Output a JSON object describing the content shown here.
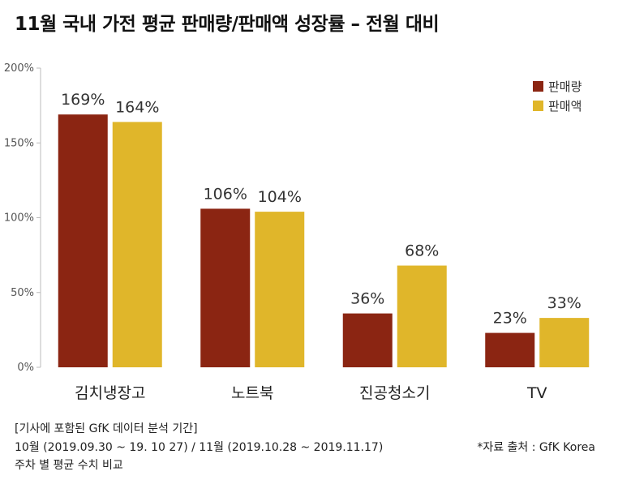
{
  "title": "11월 국내 가전 평균 판매량/판매액 성장률 – 전월 대비",
  "chart_data": {
    "type": "bar",
    "title": "11월 국내 가전 평균 판매량/판매액 성장률 – 전월 대비",
    "categories": [
      "김치냉장고",
      "노트북",
      "진공청소기",
      "TV"
    ],
    "series": [
      {
        "name": "판매량",
        "values": [
          169,
          106,
          36,
          23
        ],
        "labels": [
          "169%",
          "106%",
          "36%",
          "23%"
        ],
        "color": "#8B2512"
      },
      {
        "name": "판매액",
        "values": [
          164,
          104,
          68,
          33
        ],
        "labels": [
          "164%",
          "104%",
          "68%",
          "33%"
        ],
        "color": "#E0B62A"
      }
    ],
    "yticks": [
      "0%",
      "50%",
      "100%",
      "150%",
      "200%"
    ],
    "ylim": [
      0,
      200
    ],
    "grid": false,
    "legend": "top-right"
  },
  "footnotes": {
    "line1": "[기사에 포함된 GfK 데이터 분석 기간]",
    "line2": "10월 (2019.09.30 ~ 19. 10 27) / 11월 (2019.10.28 ~ 2019.11.17)",
    "line3": "주차 별 평균 수치 비교",
    "source": "*자료 출처 : GfK Korea"
  }
}
